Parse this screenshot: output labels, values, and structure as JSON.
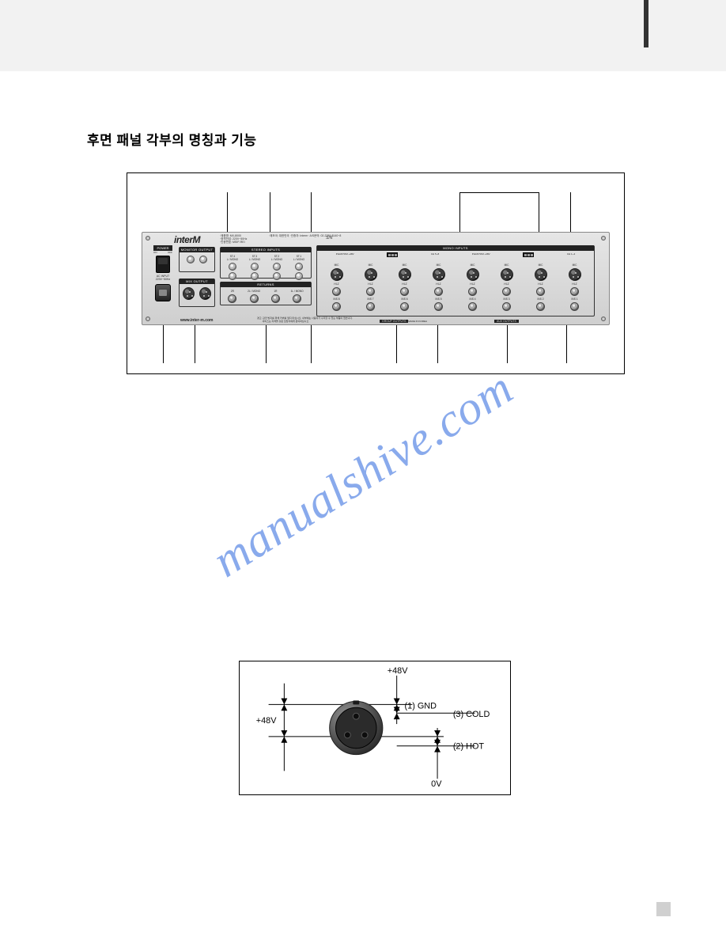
{
  "header": {
    "bar_color": "#f2f2f2",
    "mark_color": "#333333"
  },
  "section_title": "후면 패널 각부의 명칭과 기능",
  "rear_panel": {
    "brand": "interM",
    "info_block": "·제품명: MX-8000\n·정격전압: 220V~50Hz\n·인증번호: MSIP-REI",
    "info_block2": "·제조국: 대한민국\n·인증자: Interm\n·A/S문의: 02-2289-8140~8",
    "serial_prefix": "S/N",
    "sections": {
      "monitor_output": {
        "label": "MONITOR OUTPUT"
      },
      "mix_output": {
        "label": "MIX OUTPUT"
      },
      "stereo_inputs": {
        "label": "STEREO INPUTS",
        "cols": [
          "ST.4\nL / MONO",
          "ST.3\nL / MONO",
          "ST.2\nL / MONO",
          "ST.1\nL / MONO"
        ]
      },
      "returns": {
        "label": "RETURNS",
        "cols": [
          "2R",
          "2L / MONO",
          "1R",
          "1L / MONO"
        ]
      },
      "mono_inputs": {
        "label": "MONO INPUTS",
        "phantom_left": "PHANTOM +48V",
        "phantom_right": "PHANTOM +48V",
        "ch_left": "CH 5~8",
        "ch_right": "CH 1~4",
        "mic_caps": [
          "MIC",
          "MIC",
          "MIC",
          "MIC",
          "MIC",
          "MIC",
          "MIC",
          "MIC"
        ],
        "line_caps": [
          "HI-Z",
          "HI-Z",
          "HI-Z",
          "HI-Z",
          "HI-Z",
          "HI-Z",
          "HI-Z",
          "HI-Z"
        ],
        "ins_caps": [
          "INS 8",
          "INS 7",
          "INS 6",
          "INS 5",
          "INS 4",
          "INS 3",
          "INS 2",
          "INS 1"
        ]
      },
      "group_outputs": "GROUP OUTPUTS",
      "aux_outputs": "AUX OUTPUTS"
    },
    "power": {
      "label": "POWER",
      "on": "ON",
      "off": "OFF",
      "ac_label": "AC INPUT\n220V~50Hz"
    },
    "footer_url": "www.inter-m.com",
    "footer_note": "경고: 감전 방지를 위해 커버를 열지 마십시오. 내부에는 사용자가 수리할 수 있는 부품이 없습니다.\n        서비스는 자격을 갖춘 담당자에게 문의하십시오.",
    "made_in": "MADE IN KOREA",
    "colors": {
      "plate_top": "#e6e6e6",
      "plate_bottom": "#cfcfcf",
      "section_border": "#333333",
      "section_label_bg": "#222222",
      "section_label_fg": "#ffffff"
    }
  },
  "pinout": {
    "labels": {
      "v48_top": "+48V",
      "v48_left": "+48V",
      "zero": "0V",
      "pin1": "(1) GND",
      "pin2": "(2) HOT",
      "pin3": "(3) COLD"
    },
    "colors": {
      "connector_outer": "#555555",
      "connector_inner": "#2b2b2b",
      "pin_hole": "#1a1a1a",
      "line": "#000000"
    }
  },
  "watermark": "manualshive.com"
}
